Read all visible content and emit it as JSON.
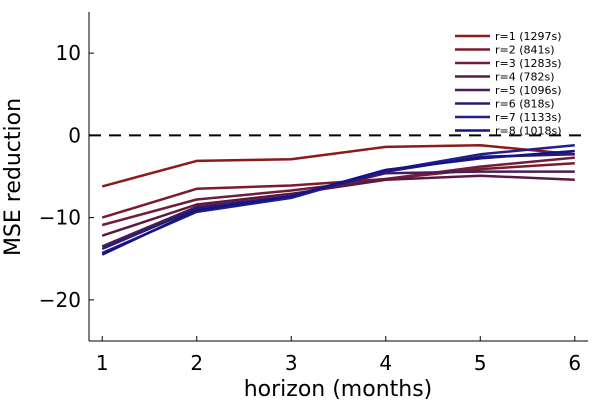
{
  "chart_data": {
    "type": "line",
    "title": "",
    "xlabel": "horizon (months)",
    "ylabel": "MSE reduction",
    "x": [
      1,
      2,
      3,
      4,
      5,
      6
    ],
    "xlim": [
      0.86,
      6.14
    ],
    "ylim": [
      -25,
      15
    ],
    "xticks": [
      1,
      2,
      3,
      4,
      5,
      6
    ],
    "yticks": [
      10,
      0,
      -10,
      -20
    ],
    "ytick_labels": [
      "10",
      "0",
      "−10",
      "−20"
    ],
    "grid": false,
    "legend_position": "top-right",
    "reference_line": {
      "y": 0,
      "style": "dashed",
      "color": "#000000"
    },
    "series": [
      {
        "name": "r=1 (1297s)",
        "color": "#8b1a1a",
        "values": [
          -6.2,
          -3.1,
          -2.9,
          -1.4,
          -1.2,
          -2.3
        ]
      },
      {
        "name": "r=2 (841s)",
        "color": "#7a1c2e",
        "values": [
          -10.0,
          -6.5,
          -6.1,
          -5.3,
          -4.1,
          -3.4
        ]
      },
      {
        "name": "r=3 (1283s)",
        "color": "#6e1d3c",
        "values": [
          -10.9,
          -7.8,
          -6.7,
          -5.3,
          -3.8,
          -2.7
        ]
      },
      {
        "name": "r=4 (782s)",
        "color": "#5a1a40",
        "values": [
          -12.2,
          -8.4,
          -7.1,
          -5.4,
          -4.9,
          -5.4
        ]
      },
      {
        "name": "r=5 (1096s)",
        "color": "#4a1c5a",
        "values": [
          -13.5,
          -8.7,
          -7.4,
          -4.6,
          -4.4,
          -4.4
        ]
      },
      {
        "name": "r=6 (818s)",
        "color": "#2c1a6a",
        "values": [
          -13.8,
          -8.9,
          -7.5,
          -4.4,
          -2.6,
          -2.3
        ]
      },
      {
        "name": "r=7 (1133s)",
        "color": "#1f1f8c",
        "values": [
          -14.3,
          -9.3,
          -7.6,
          -4.3,
          -2.3,
          -1.2
        ]
      },
      {
        "name": "r=8 (1018s)",
        "color": "#14148a",
        "values": [
          -14.5,
          -9.1,
          -7.4,
          -4.2,
          -2.8,
          -1.9
        ]
      }
    ]
  }
}
